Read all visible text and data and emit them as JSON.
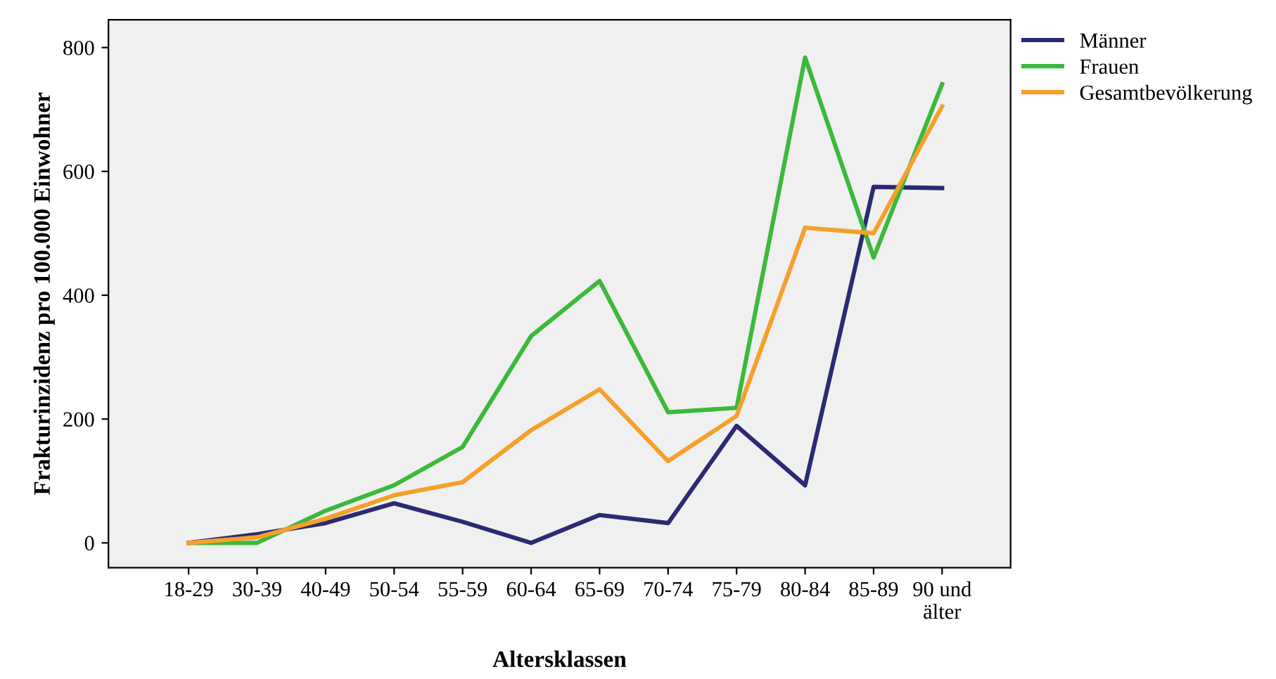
{
  "chart_data": {
    "type": "line",
    "xlabel": "Altersklassen",
    "ylabel": "Frakturinzidenz pro 100.000 Einwohner",
    "categories": [
      "18-29",
      "30-39",
      "40-49",
      "50-54",
      "55-59",
      "60-64",
      "65-69",
      "70-74",
      "75-79",
      "80-84",
      "85-89",
      "90 und\nälter"
    ],
    "series": [
      {
        "name": "Männer",
        "color": "#2b2a73",
        "values": [
          0,
          14,
          32,
          64,
          34,
          0,
          45,
          32,
          189,
          93,
          575,
          573
        ]
      },
      {
        "name": "Frauen",
        "color": "#3cb93c",
        "values": [
          0,
          0,
          52,
          93,
          155,
          334,
          423,
          211,
          218,
          784,
          461,
          741
        ]
      },
      {
        "name": "Gesamtbevölkerung",
        "color": "#f5a02a",
        "values": [
          0,
          9,
          39,
          77,
          98,
          182,
          248,
          132,
          205,
          509,
          500,
          705
        ]
      }
    ],
    "ylim": [
      -40,
      845
    ],
    "yticks": [
      0,
      200,
      400,
      600,
      800
    ],
    "grid": false,
    "legend": "top right",
    "marker": "none",
    "line_style": "solid"
  }
}
